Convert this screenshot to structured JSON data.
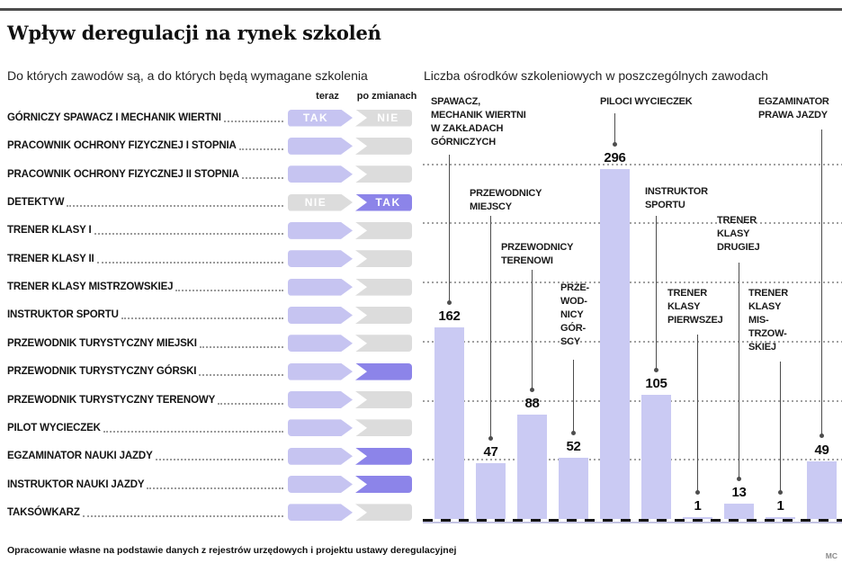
{
  "title": "Wpływ deregulacji na rynek szkoleń",
  "left_panel": {
    "subtitle": "Do których zawodów są, a do których będą wymagane szkolenia",
    "columns": {
      "now": "teraz",
      "after": "po zmianach"
    },
    "legend_values": {
      "yes": "TAK",
      "no": "NIE"
    },
    "rows": [
      {
        "label": "GÓRNICZY SPAWACZ I MECHANIK WIERTNI",
        "now": {
          "text": "TAK",
          "style": "light"
        },
        "after": {
          "text": "NIE",
          "style": "gray"
        }
      },
      {
        "label": "PRACOWNIK OCHRONY FIZYCZNEJ I STOPNIA",
        "now": {
          "text": "",
          "style": "light"
        },
        "after": {
          "text": "",
          "style": "gray"
        }
      },
      {
        "label": "PRACOWNIK OCHRONY FIZYCZNEJ II STOPNIA",
        "now": {
          "text": "",
          "style": "light"
        },
        "after": {
          "text": "",
          "style": "gray"
        }
      },
      {
        "label": "DETEKTYW",
        "now": {
          "text": "NIE",
          "style": "gray"
        },
        "after": {
          "text": "TAK",
          "style": "dark"
        }
      },
      {
        "label": "TRENER KLASY I",
        "now": {
          "text": "",
          "style": "light"
        },
        "after": {
          "text": "",
          "style": "gray"
        }
      },
      {
        "label": "TRENER KLASY II",
        "now": {
          "text": "",
          "style": "light"
        },
        "after": {
          "text": "",
          "style": "gray"
        }
      },
      {
        "label": "TRENER KLASY MISTRZOWSKIEJ",
        "now": {
          "text": "",
          "style": "light"
        },
        "after": {
          "text": "",
          "style": "gray"
        }
      },
      {
        "label": "INSTRUKTOR SPORTU",
        "now": {
          "text": "",
          "style": "light"
        },
        "after": {
          "text": "",
          "style": "gray"
        }
      },
      {
        "label": "PRZEWODNIK TURYSTYCZNY MIEJSKI",
        "now": {
          "text": "",
          "style": "light"
        },
        "after": {
          "text": "",
          "style": "gray"
        }
      },
      {
        "label": "PRZEWODNIK TURYSTYCZNY GÓRSKI",
        "now": {
          "text": "",
          "style": "light"
        },
        "after": {
          "text": "",
          "style": "dark"
        }
      },
      {
        "label": "PRZEWODNIK TURYSTYCZNY TERENOWY",
        "now": {
          "text": "",
          "style": "light"
        },
        "after": {
          "text": "",
          "style": "gray"
        }
      },
      {
        "label": "PILOT WYCIECZEK",
        "now": {
          "text": "",
          "style": "light"
        },
        "after": {
          "text": "",
          "style": "gray"
        }
      },
      {
        "label": "EGZAMINATOR NAUKI JAZDY",
        "now": {
          "text": "",
          "style": "light"
        },
        "after": {
          "text": "",
          "style": "dark"
        }
      },
      {
        "label": "INSTRUKTOR NAUKI JAZDY",
        "now": {
          "text": "",
          "style": "light"
        },
        "after": {
          "text": "",
          "style": "dark"
        }
      },
      {
        "label": "TAKSÓWKARZ",
        "now": {
          "text": "",
          "style": "light"
        },
        "after": {
          "text": "",
          "style": "gray"
        }
      }
    ]
  },
  "chart_data": {
    "type": "bar",
    "title": "Liczba ośrodków szkoleniowych w poszczególnych zawodach",
    "categories": [
      "SPAWACZ, MECHANIK WIERTNI W ZAKŁADACH GÓRNICZYCH",
      "PRZEWODNICY MIEJSCY",
      "PRZEWODNICY TERENOWI",
      "PRZEWODNICY GÓRSCY",
      "PILOCI WYCIECZEK",
      "INSTRUKTOR SPORTU",
      "TRENER KLASY PIERWSZEJ",
      "TRENER KLASY DRUGIEJ",
      "TRENER KLASY MISTRZOWSKIEJ",
      "EGZAMINATOR PRAWA JAZDY"
    ],
    "label_lines": [
      [
        "SPAWACZ,",
        "MECHANIK WIERTNI",
        "W ZAKŁADACH",
        "GÓRNICZYCH"
      ],
      [
        "PRZEWODNICY",
        "MIEJSCY"
      ],
      [
        "PRZEWODNICY",
        "TERENOWI"
      ],
      [
        "PRZE-",
        "WOD-",
        "NICY",
        "GÓR-",
        "SCY"
      ],
      [
        "PILOCI WYCIECZEK"
      ],
      [
        "INSTRUKTOR",
        "SPORTU"
      ],
      [
        "TRENER",
        "KLASY",
        "PIERWSZEJ"
      ],
      [
        "TRENER",
        "KLASY",
        "DRUGIEJ"
      ],
      [
        "TRENER",
        "KLASY",
        "MIS-",
        "TRZOW-",
        "SKIEJ"
      ],
      [
        "EGZAMINATOR",
        "PRAWA JAZDY"
      ]
    ],
    "values": [
      162,
      47,
      88,
      52,
      296,
      105,
      1,
      13,
      1,
      49
    ],
    "xlabel": "",
    "ylabel": "",
    "ylim": [
      0,
      310
    ],
    "gridlines": [
      50,
      100,
      150,
      200,
      250,
      300
    ],
    "grid": "dotted horizontal, no tick labels",
    "legend_position": "none",
    "bar_color": "#cacaf3",
    "value_labels": true
  },
  "colors": {
    "bar": "#cacaf3",
    "arrow_light_purple": "#c6c4f1",
    "arrow_dark_purple": "#8c84e9",
    "arrow_gray": "#dcdcdc",
    "arrow_text": "#ffffff"
  },
  "footer": {
    "source": "Opracowanie własne na podstawie danych z rejestrów urzędowych i projektu ustawy deregulacyjnej",
    "credit": "MC"
  }
}
